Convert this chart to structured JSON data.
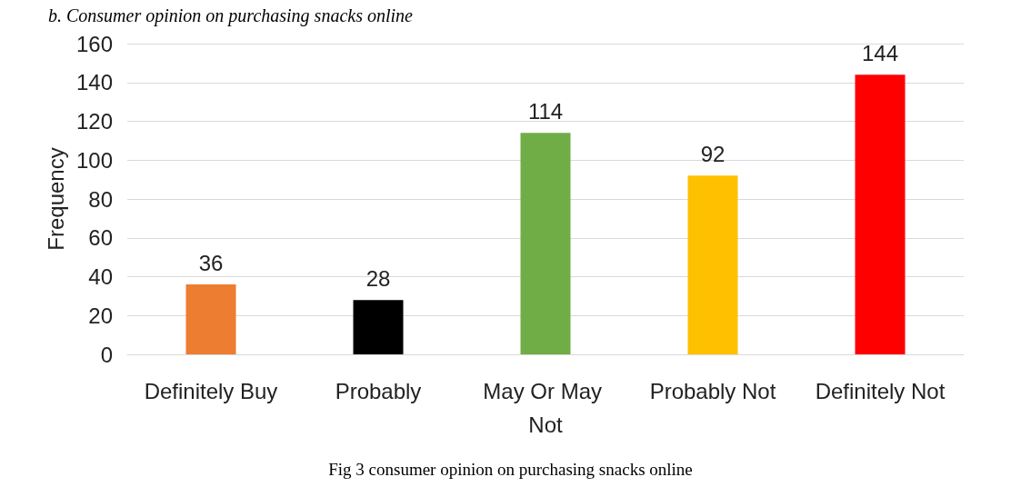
{
  "chart_data": {
    "type": "bar",
    "title": "b. Consumer opinion on purchasing snacks online",
    "ylabel": "Frequency",
    "categories": [
      "Definitely Buy",
      "Probably",
      "May Or May Not",
      "Probably Not",
      "Definitely Not"
    ],
    "values": [
      36,
      28,
      114,
      92,
      144
    ],
    "colors": [
      "#ed7d31",
      "#000000",
      "#70ad47",
      "#ffc000",
      "#ff0000"
    ],
    "ylim": [
      0,
      160
    ],
    "yticks": [
      0,
      20,
      40,
      60,
      80,
      100,
      120,
      140,
      160
    ],
    "grid": "y",
    "data_labels": true,
    "annotations": [
      "Fig 3 consumer opinion on purchasing snacks online"
    ]
  }
}
